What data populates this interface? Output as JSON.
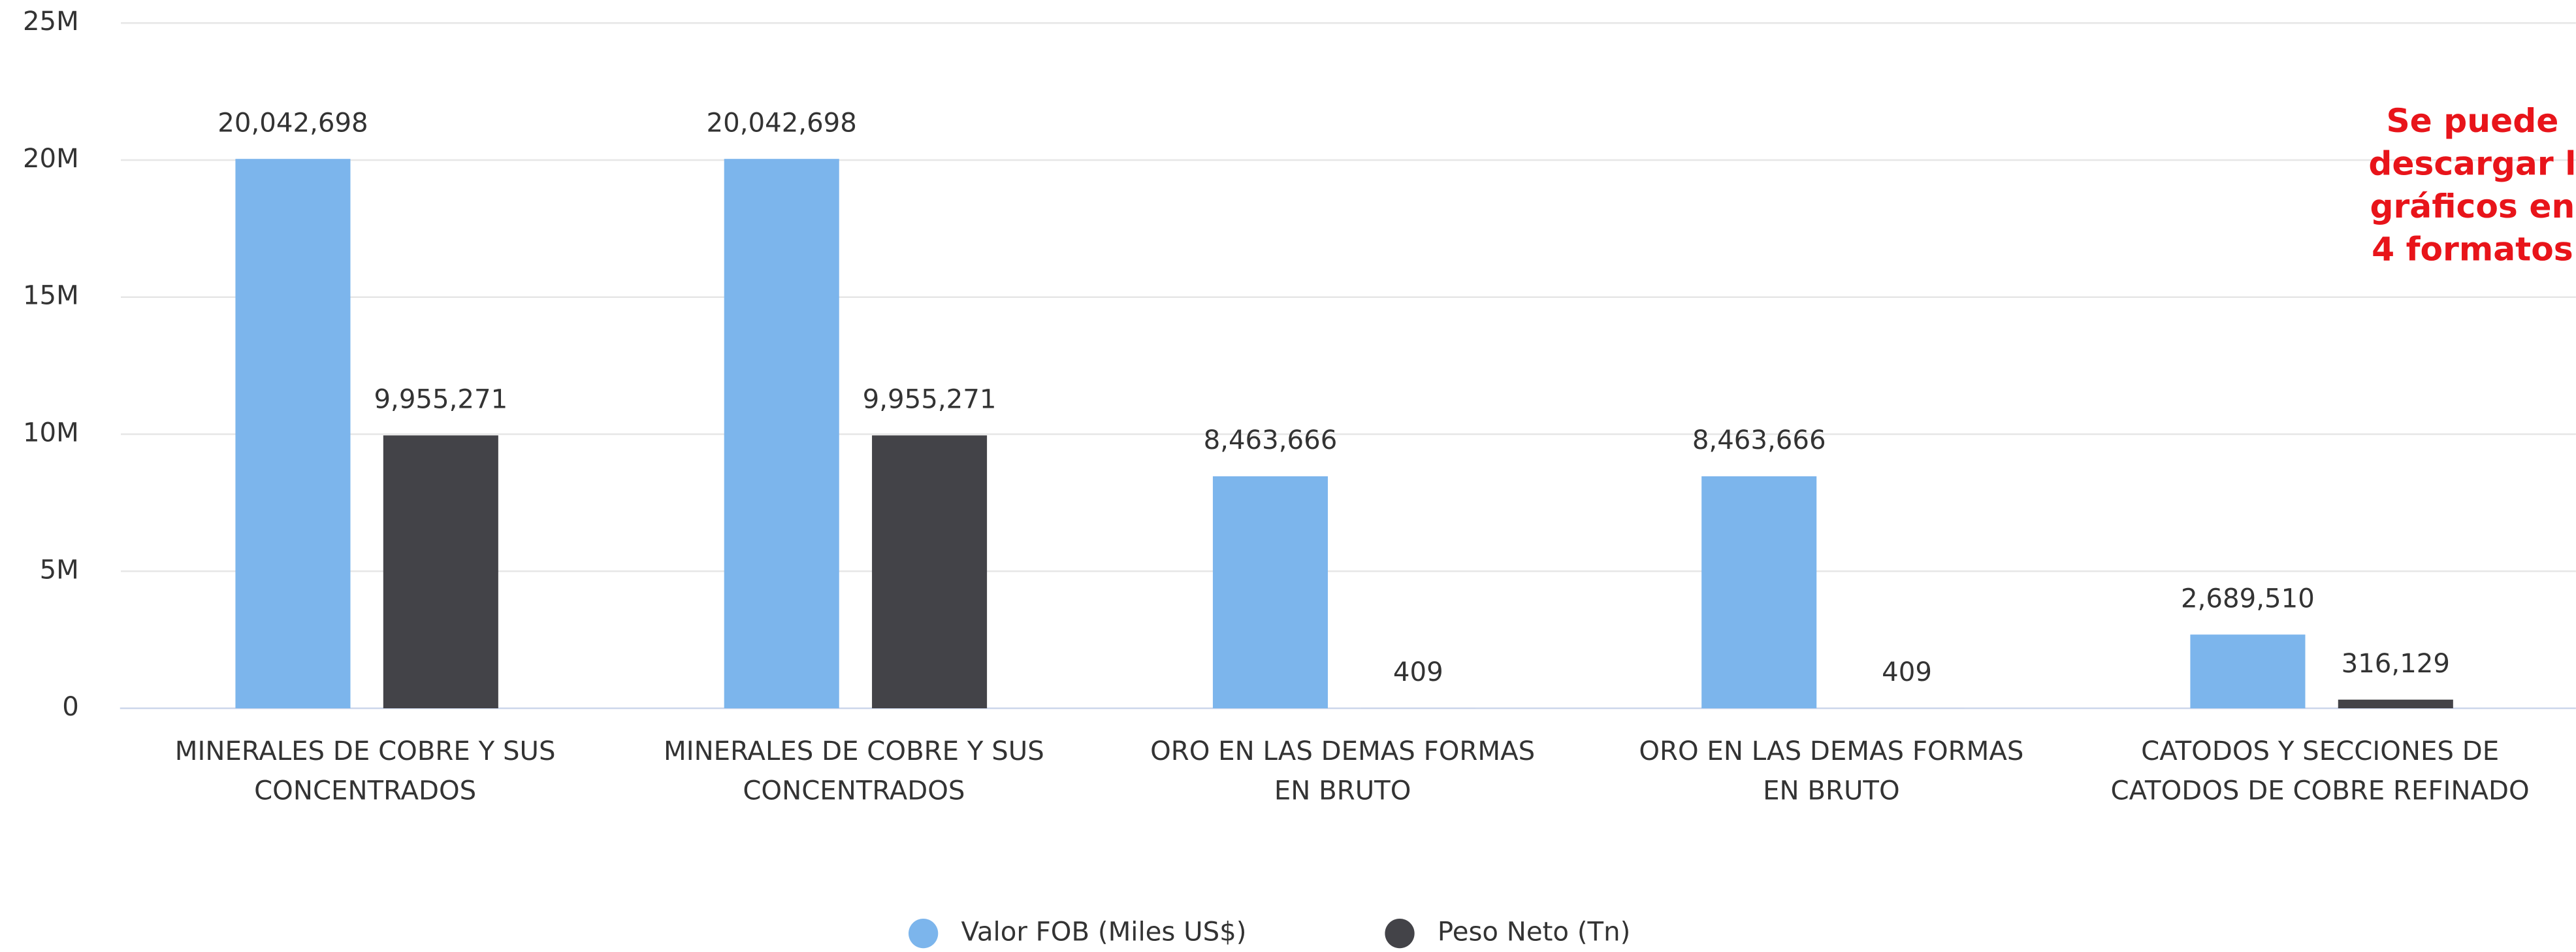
{
  "chart_data": {
    "type": "bar",
    "categories": [
      "MINERALES DE COBRE Y SUS CONCENTRADOS",
      "MINERALES DE COBRE Y SUS CONCENTRADOS",
      "ORO EN LAS DEMAS FORMAS EN BRUTO",
      "ORO EN LAS DEMAS FORMAS EN BRUTO",
      "CATODOS Y SECCIONES DE CATODOS DE COBRE REFINADO"
    ],
    "series": [
      {
        "name": "Valor FOB (Miles US$)",
        "color": "#7cb5ec",
        "values": [
          20042698,
          20042698,
          8463666,
          8463666,
          2689510
        ],
        "value_labels": [
          "20,042,698",
          "20,042,698",
          "8,463,666",
          "8,463,666",
          "2,689,510"
        ]
      },
      {
        "name": "Peso Neto (Tn)",
        "color": "#434348",
        "values": [
          9955271,
          9955271,
          409,
          409,
          316129
        ],
        "value_labels": [
          "9,955,271",
          "9,955,271",
          "409",
          "409",
          "316,129"
        ]
      }
    ],
    "ylim": [
      0,
      25000000
    ],
    "yticks": [
      0,
      {
        "value": 5000000,
        "label": "5M"
      },
      {
        "value": 10000000,
        "label": "10M"
      },
      {
        "value": 15000000,
        "label": "15M"
      },
      {
        "value": 20000000,
        "label": "20M"
      },
      {
        "value": 25000000,
        "label": "25M"
      }
    ],
    "grid": true,
    "legend": "bottom",
    "annotation": [
      "Se puede",
      "descargar l",
      "gráficos en",
      "4 formatos"
    ]
  }
}
